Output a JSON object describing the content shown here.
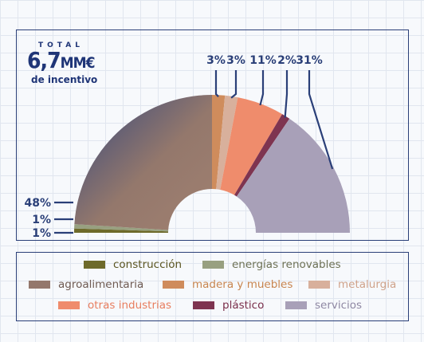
{
  "total": {
    "label": "TOTAL",
    "value": "6,7",
    "unit": "MM€",
    "subtitle": "de incentivo"
  },
  "chart_data": {
    "type": "pie",
    "title": "",
    "half_donut": true,
    "slices": [
      {
        "name": "construcción",
        "value": 1,
        "label": "1%",
        "color": "#6e6a2a",
        "text_color": "#5b5521"
      },
      {
        "name": "energías renovables",
        "value": 1,
        "label": "1%",
        "color": "#98a080",
        "text_color": "#6e7256"
      },
      {
        "name": "agroalimentaria",
        "value": 48,
        "label": "48%",
        "color": "#94786c",
        "text_color": "#6e5a52"
      },
      {
        "name": "madera y muebles",
        "value": 3,
        "label": "3%",
        "color": "#cf8c5c",
        "text_color": "#c8854f"
      },
      {
        "name": "metalurgia",
        "value": 3,
        "label": "3%",
        "color": "#d8b09c",
        "text_color": "#cfa28a"
      },
      {
        "name": "otras industrias",
        "value": 11,
        "label": "11%",
        "color": "#ef8c6c",
        "text_color": "#e87e5f"
      },
      {
        "name": "plástico",
        "value": 2,
        "label": "2%",
        "color": "#7e3450",
        "text_color": "#7a2e4a"
      },
      {
        "name": "servicios",
        "value": 31,
        "label": "31%",
        "color": "#a8a0b8",
        "text_color": "#8f88a3"
      }
    ]
  }
}
